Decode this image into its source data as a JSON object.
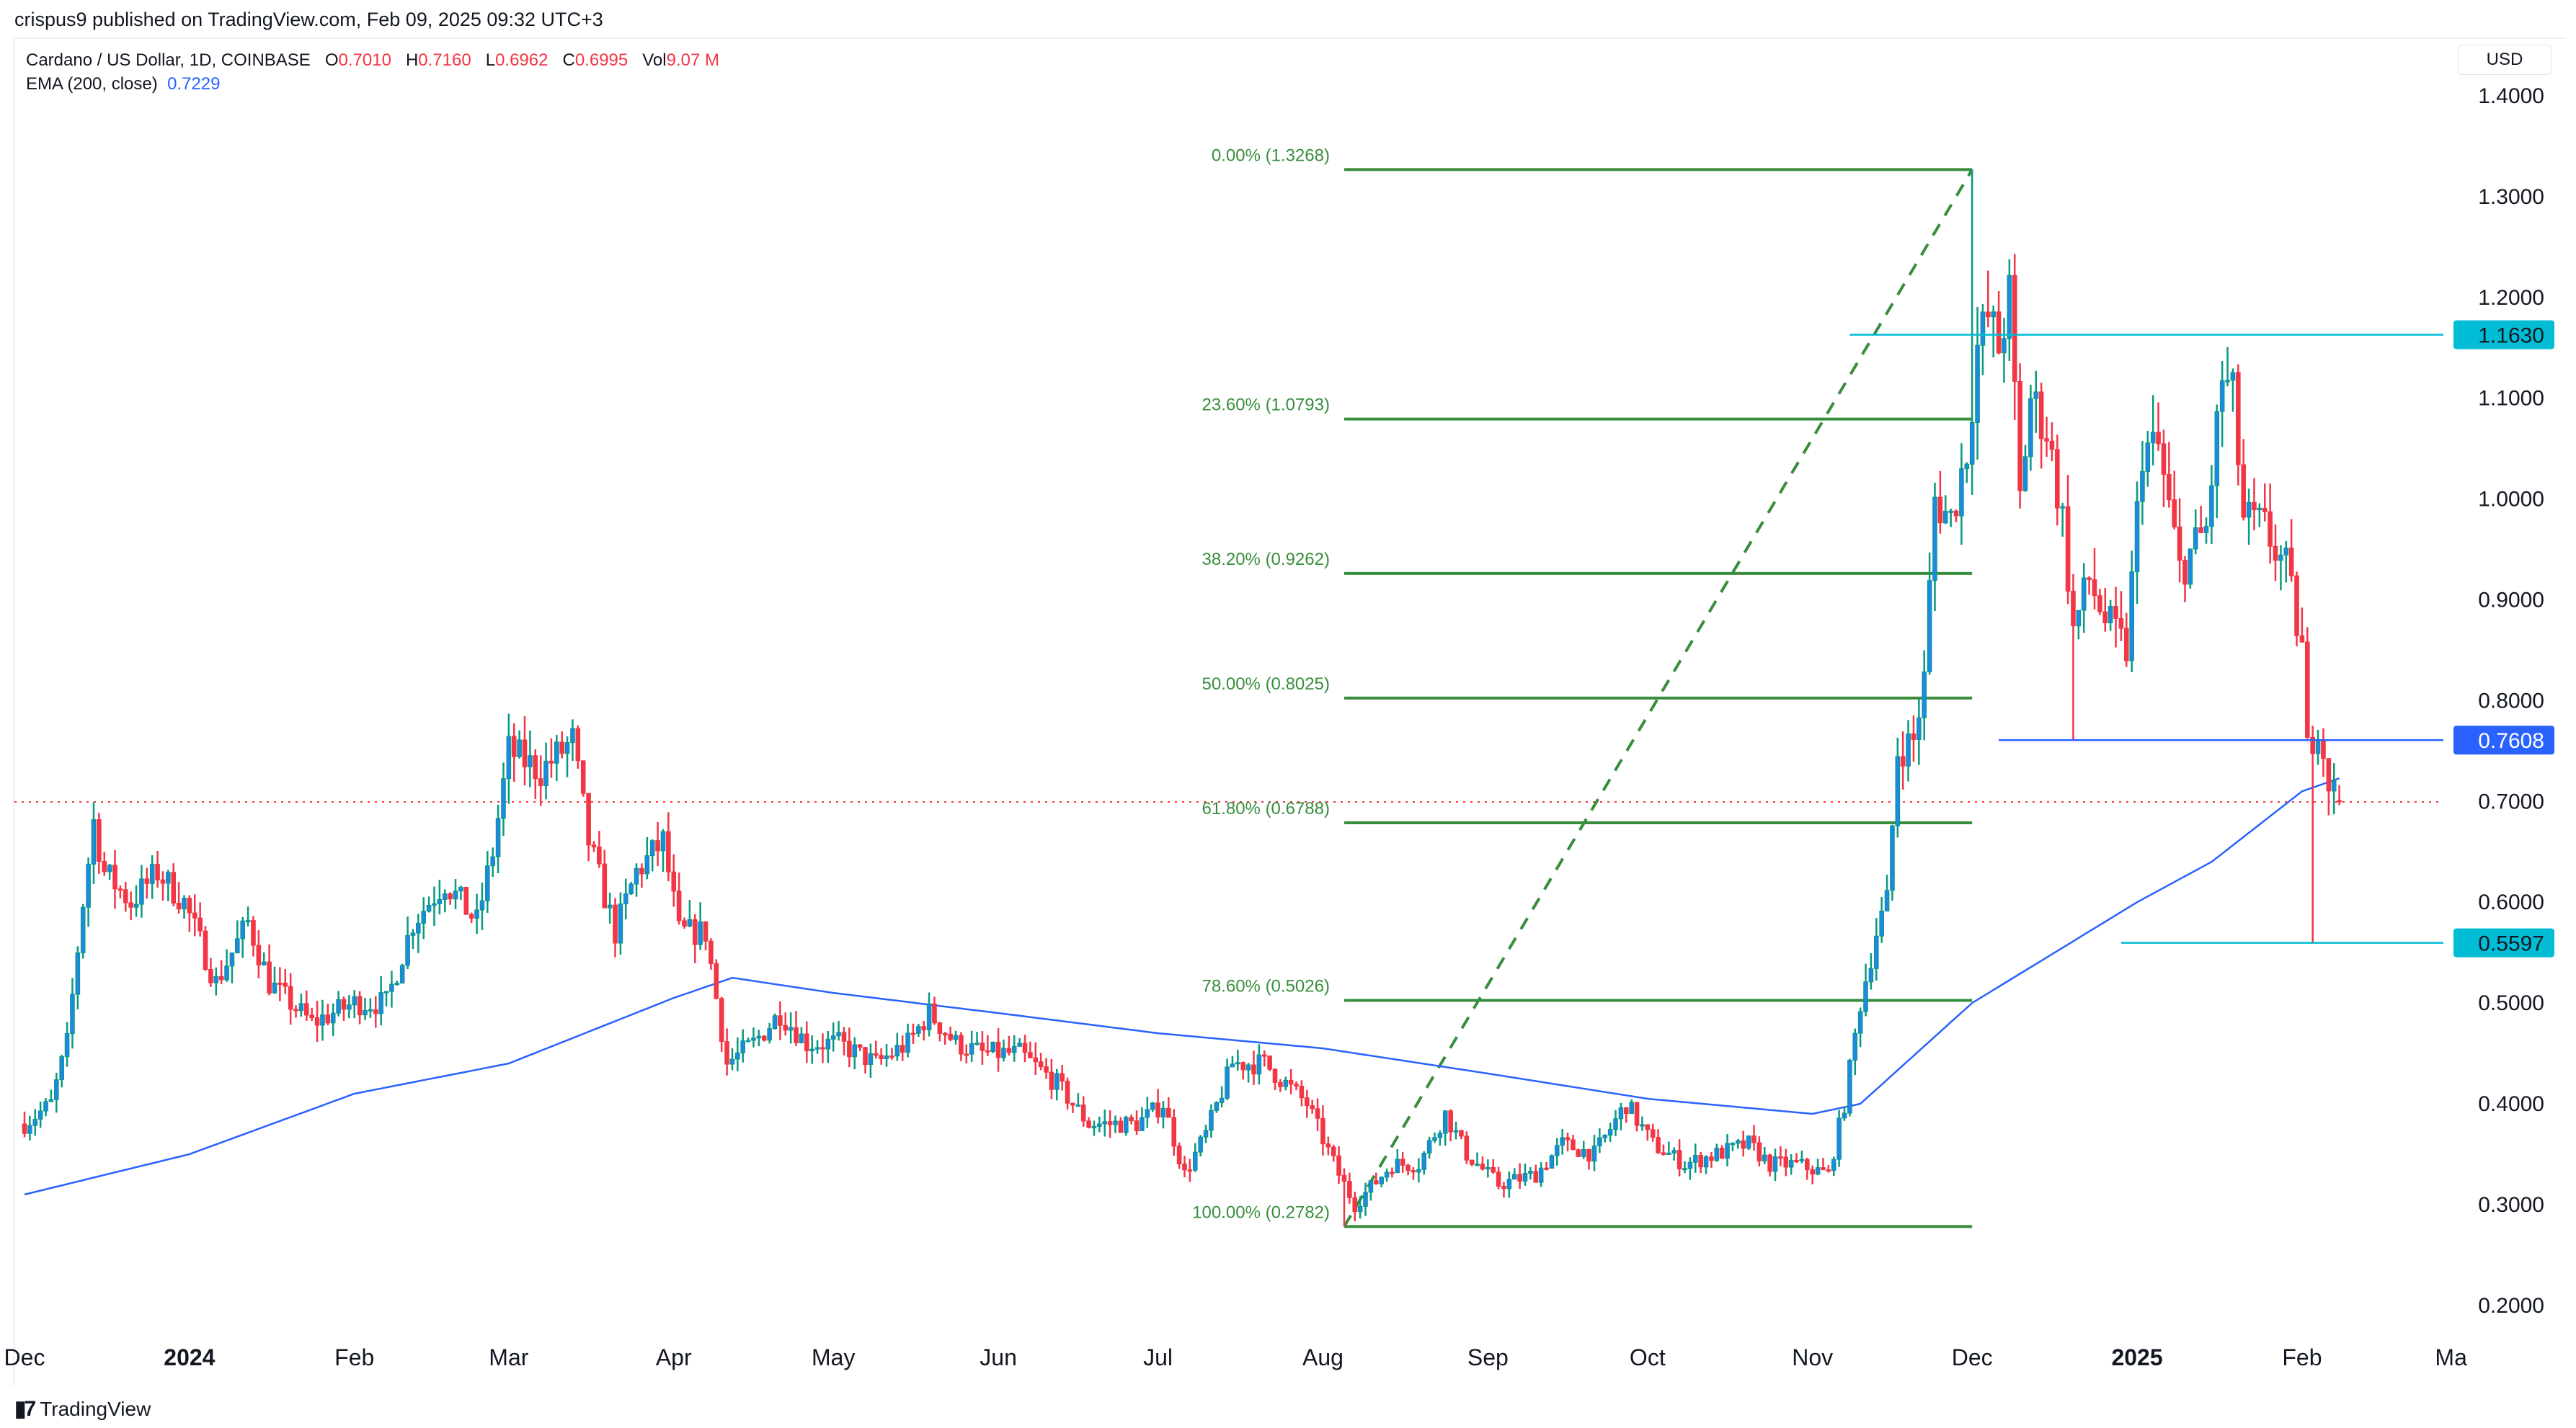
{
  "header": {
    "published": "crispus9 published on TradingView.com, Feb 09, 2025 09:32 UTC+3"
  },
  "legend": {
    "symbol": "Cardano / US Dollar, 1D, COINBASE",
    "o_label": "O",
    "o": "0.7010",
    "h_label": "H",
    "h": "0.7160",
    "l_label": "L",
    "l": "0.6962",
    "c_label": "C",
    "c": "0.6995",
    "vol_label": "Vol",
    "vol": "9.07 M",
    "ema_label": "EMA (200, close)",
    "ema": "0.7229"
  },
  "axis": {
    "currency": "USD"
  },
  "footer": {
    "brand": "TradingView",
    "logo_mark": "17"
  },
  "chart_data": {
    "type": "candlestick",
    "title": "Cardano / US Dollar, 1D, COINBASE",
    "ylim": [
      0.2,
      1.4
    ],
    "y_ticks": [
      "1.4000",
      "1.3000",
      "1.2000",
      "1.1000",
      "1.0000",
      "0.9000",
      "0.8000",
      "0.7000",
      "0.6000",
      "0.5000",
      "0.4000",
      "0.3000",
      "0.2000"
    ],
    "x_ticks": [
      {
        "label": "Dec",
        "day": 0,
        "bold": false
      },
      {
        "label": "2024",
        "day": 31,
        "bold": true
      },
      {
        "label": "Feb",
        "day": 62,
        "bold": false
      },
      {
        "label": "Mar",
        "day": 91,
        "bold": false
      },
      {
        "label": "Apr",
        "day": 122,
        "bold": false
      },
      {
        "label": "May",
        "day": 152,
        "bold": false
      },
      {
        "label": "Jun",
        "day": 183,
        "bold": false
      },
      {
        "label": "Jul",
        "day": 213,
        "bold": false
      },
      {
        "label": "Aug",
        "day": 244,
        "bold": false
      },
      {
        "label": "Sep",
        "day": 275,
        "bold": false
      },
      {
        "label": "Oct",
        "day": 305,
        "bold": false
      },
      {
        "label": "Nov",
        "day": 336,
        "bold": false
      },
      {
        "label": "Dec",
        "day": 366,
        "bold": false
      },
      {
        "label": "2025",
        "day": 397,
        "bold": true
      },
      {
        "label": "Feb",
        "day": 428,
        "bold": false
      },
      {
        "label": "Ma",
        "day": 456,
        "bold": false
      }
    ],
    "day_origin": "2023-12-01",
    "close_anchors": [
      [
        0,
        0.38
      ],
      [
        5,
        0.4
      ],
      [
        8,
        0.46
      ],
      [
        11,
        0.6
      ],
      [
        13,
        0.68
      ],
      [
        15,
        0.63
      ],
      [
        20,
        0.6
      ],
      [
        25,
        0.63
      ],
      [
        30,
        0.6
      ],
      [
        36,
        0.52
      ],
      [
        42,
        0.58
      ],
      [
        46,
        0.52
      ],
      [
        54,
        0.48
      ],
      [
        62,
        0.5
      ],
      [
        68,
        0.5
      ],
      [
        73,
        0.58
      ],
      [
        79,
        0.62
      ],
      [
        85,
        0.58
      ],
      [
        88,
        0.65
      ],
      [
        91,
        0.75
      ],
      [
        97,
        0.73
      ],
      [
        103,
        0.76
      ],
      [
        106,
        0.66
      ],
      [
        111,
        0.57
      ],
      [
        115,
        0.63
      ],
      [
        120,
        0.66
      ],
      [
        123,
        0.57
      ],
      [
        128,
        0.57
      ],
      [
        132,
        0.44
      ],
      [
        137,
        0.46
      ],
      [
        142,
        0.49
      ],
      [
        147,
        0.46
      ],
      [
        153,
        0.46
      ],
      [
        160,
        0.44
      ],
      [
        166,
        0.46
      ],
      [
        170,
        0.49
      ],
      [
        175,
        0.46
      ],
      [
        180,
        0.45
      ],
      [
        187,
        0.45
      ],
      [
        194,
        0.42
      ],
      [
        200,
        0.38
      ],
      [
        209,
        0.38
      ],
      [
        214,
        0.4
      ],
      [
        218,
        0.33
      ],
      [
        222,
        0.37
      ],
      [
        227,
        0.44
      ],
      [
        233,
        0.44
      ],
      [
        241,
        0.4
      ],
      [
        247,
        0.33
      ],
      [
        250,
        0.3
      ],
      [
        257,
        0.34
      ],
      [
        262,
        0.34
      ],
      [
        267,
        0.39
      ],
      [
        271,
        0.35
      ],
      [
        277,
        0.32
      ],
      [
        284,
        0.33
      ],
      [
        289,
        0.36
      ],
      [
        295,
        0.35
      ],
      [
        301,
        0.4
      ],
      [
        306,
        0.36
      ],
      [
        312,
        0.34
      ],
      [
        318,
        0.35
      ],
      [
        324,
        0.36
      ],
      [
        328,
        0.34
      ],
      [
        333,
        0.34
      ],
      [
        339,
        0.33
      ],
      [
        342,
        0.4
      ],
      [
        345,
        0.5
      ],
      [
        348,
        0.57
      ],
      [
        350,
        0.6
      ],
      [
        352,
        0.75
      ],
      [
        355,
        0.76
      ],
      [
        357,
        0.82
      ],
      [
        359,
        1.0
      ],
      [
        362,
        0.98
      ],
      [
        365,
        1.05
      ],
      [
        367,
        1.15
      ],
      [
        369,
        1.18
      ],
      [
        371,
        1.15
      ],
      [
        373,
        1.2
      ],
      [
        375,
        1.0
      ],
      [
        377,
        1.1
      ],
      [
        380,
        1.07
      ],
      [
        383,
        0.98
      ],
      [
        385,
        0.87
      ],
      [
        388,
        0.92
      ],
      [
        391,
        0.88
      ],
      [
        395,
        0.85
      ],
      [
        398,
        1.05
      ],
      [
        401,
        1.05
      ],
      [
        405,
        0.93
      ],
      [
        410,
        0.97
      ],
      [
        413,
        1.12
      ],
      [
        415,
        1.1
      ],
      [
        417,
        0.98
      ],
      [
        421,
        0.97
      ],
      [
        425,
        0.93
      ],
      [
        428,
        0.85
      ],
      [
        429,
        0.75
      ],
      [
        431,
        0.78
      ],
      [
        433,
        0.72
      ],
      [
        435,
        0.6995
      ]
    ],
    "special_wicks": [
      {
        "day": 248,
        "low": 0.2782
      },
      {
        "day": 366,
        "high": 1.3268
      },
      {
        "day": 385,
        "low": 0.7608
      },
      {
        "day": 430,
        "low": 0.5597
      }
    ],
    "ema200": {
      "name": "EMA (200, close)",
      "anchors": [
        [
          0,
          0.31
        ],
        [
          31,
          0.35
        ],
        [
          62,
          0.41
        ],
        [
          91,
          0.44
        ],
        [
          122,
          0.505
        ],
        [
          133,
          0.525
        ],
        [
          152,
          0.51
        ],
        [
          183,
          0.49
        ],
        [
          213,
          0.47
        ],
        [
          244,
          0.455
        ],
        [
          275,
          0.43
        ],
        [
          305,
          0.405
        ],
        [
          336,
          0.39
        ],
        [
          345,
          0.4
        ],
        [
          366,
          0.5
        ],
        [
          397,
          0.6
        ],
        [
          411,
          0.64
        ],
        [
          428,
          0.71
        ],
        [
          435,
          0.7229
        ]
      ],
      "color": "#2962ff"
    },
    "fibonacci": {
      "start": {
        "day": 248,
        "price": 0.2782
      },
      "end": {
        "day": 366,
        "price": 1.3268
      },
      "levels": [
        {
          "label": "0.00% (1.3268)",
          "price": 1.3268
        },
        {
          "label": "23.60% (1.0793)",
          "price": 1.0793
        },
        {
          "label": "38.20% (0.9262)",
          "price": 0.9262
        },
        {
          "label": "50.00% (0.8025)",
          "price": 0.8025
        },
        {
          "label": "61.80% (0.6788)",
          "price": 0.6788
        },
        {
          "label": "78.60% (0.5026)",
          "price": 0.5026
        },
        {
          "label": "100.00% (0.2782)",
          "price": 0.2782
        }
      ],
      "color": "#388e3c"
    },
    "horizontal_lines": [
      {
        "price": 1.163,
        "label": "1.1630",
        "from_day": 343,
        "color": "#00bcd4",
        "text": "#131722"
      },
      {
        "price": 0.7608,
        "label": "0.7608",
        "from_day": 371,
        "color": "#2962ff",
        "text": "#ffffff"
      },
      {
        "price": 0.5597,
        "label": "0.5597",
        "from_day": 394,
        "color": "#00bcd4",
        "text": "#131722"
      }
    ],
    "last_price": 0.6995,
    "colors": {
      "up": "#089981",
      "up_body": "#1e88e5",
      "down": "#f23645"
    }
  }
}
